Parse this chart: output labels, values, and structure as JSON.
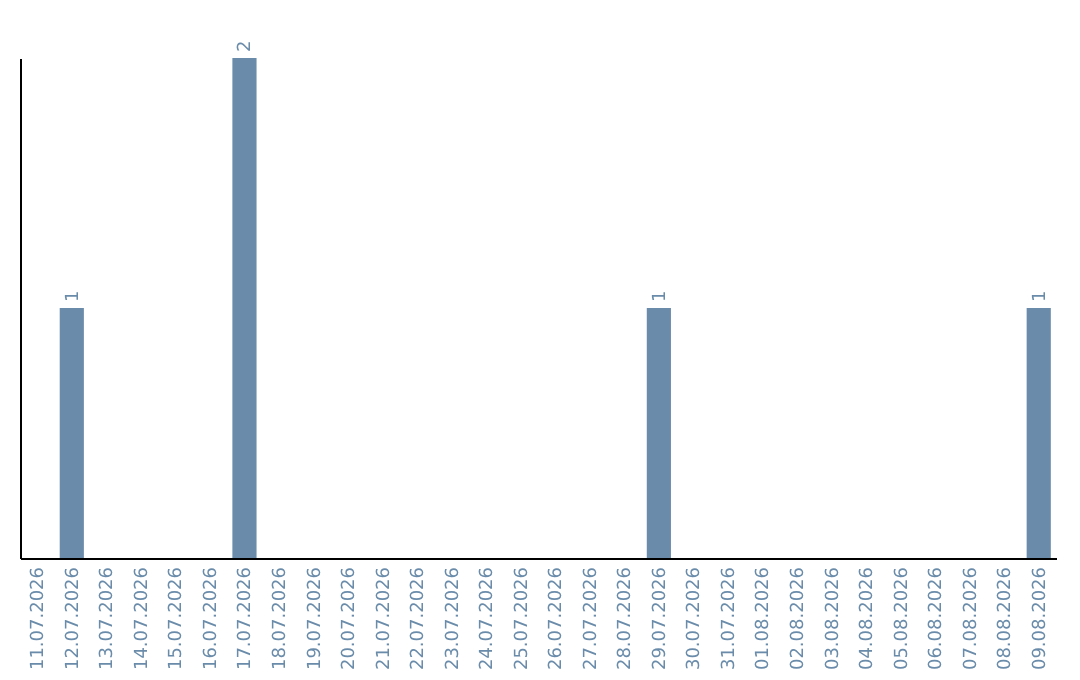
{
  "chart_data": {
    "type": "bar",
    "categories": [
      "11.07.2026",
      "12.07.2026",
      "13.07.2026",
      "14.07.2026",
      "15.07.2026",
      "16.07.2026",
      "17.07.2026",
      "18.07.2026",
      "19.07.2026",
      "20.07.2026",
      "21.07.2026",
      "22.07.2026",
      "23.07.2026",
      "24.07.2026",
      "25.07.2026",
      "26.07.2026",
      "27.07.2026",
      "28.07.2026",
      "29.07.2026",
      "30.07.2026",
      "31.07.2026",
      "01.08.2026",
      "02.08.2026",
      "03.08.2026",
      "04.08.2026",
      "05.08.2026",
      "06.08.2026",
      "07.08.2026",
      "08.08.2026",
      "09.08.2026"
    ],
    "values": [
      0,
      1,
      0,
      0,
      0,
      0,
      2,
      0,
      0,
      0,
      0,
      0,
      0,
      0,
      0,
      0,
      0,
      0,
      1,
      0,
      0,
      0,
      0,
      0,
      0,
      0,
      0,
      0,
      0,
      1
    ],
    "value_labels": [
      null,
      "1",
      null,
      null,
      null,
      null,
      "2",
      null,
      null,
      null,
      null,
      null,
      null,
      null,
      null,
      null,
      null,
      null,
      "1",
      null,
      null,
      null,
      null,
      null,
      null,
      null,
      null,
      null,
      null,
      "1"
    ],
    "color": "#6a8caa",
    "tick_labels": "x"
  }
}
